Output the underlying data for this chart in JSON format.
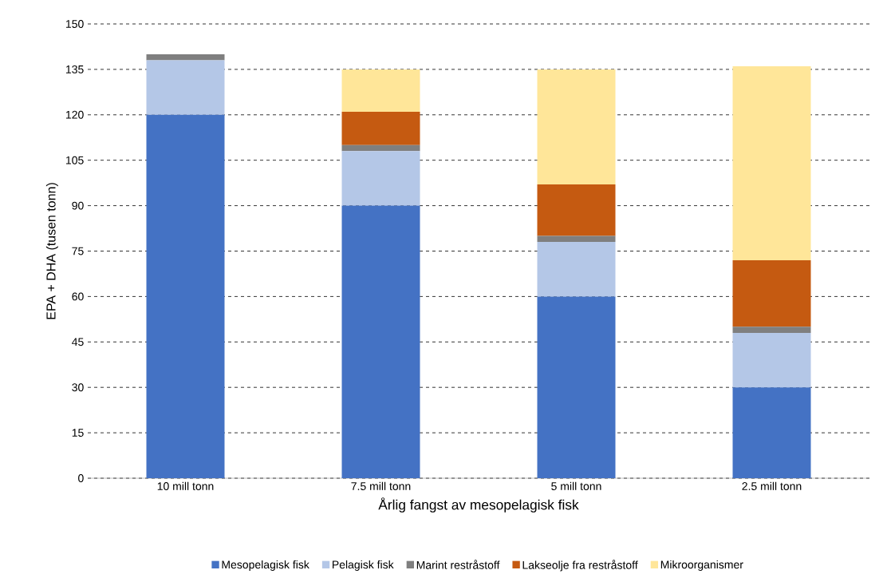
{
  "chart_data": {
    "type": "bar",
    "stacked": true,
    "xlabel": "Årlig fangst av mesopelagisk fisk",
    "ylabel": "EPA + DHA (tusen tonn)",
    "categories": [
      "10 mill tonn",
      "7.5 mill tonn",
      "5 mill tonn",
      "2.5 mill tonn"
    ],
    "series": [
      {
        "name": "Mesopelagisk fisk",
        "color": "#4472c4",
        "values": [
          120,
          90,
          60,
          30
        ]
      },
      {
        "name": "Pelagisk fisk",
        "color": "#b4c7e7",
        "values": [
          18,
          18,
          18,
          18
        ]
      },
      {
        "name": "Marint restråstoff",
        "color": "#7f7f7f",
        "values": [
          2,
          2,
          2,
          2
        ]
      },
      {
        "name": "Lakseolje fra restråstoff",
        "color": "#c55a11",
        "values": [
          0,
          11,
          17,
          22
        ]
      },
      {
        "name": "Mikroorganismer",
        "color": "#ffe699",
        "values": [
          0,
          14,
          38,
          64
        ]
      }
    ],
    "ylim": [
      0,
      150
    ],
    "yticks": [
      0,
      15,
      30,
      45,
      60,
      75,
      90,
      105,
      120,
      135,
      150
    ],
    "grid": "y",
    "legend": "bottom"
  }
}
